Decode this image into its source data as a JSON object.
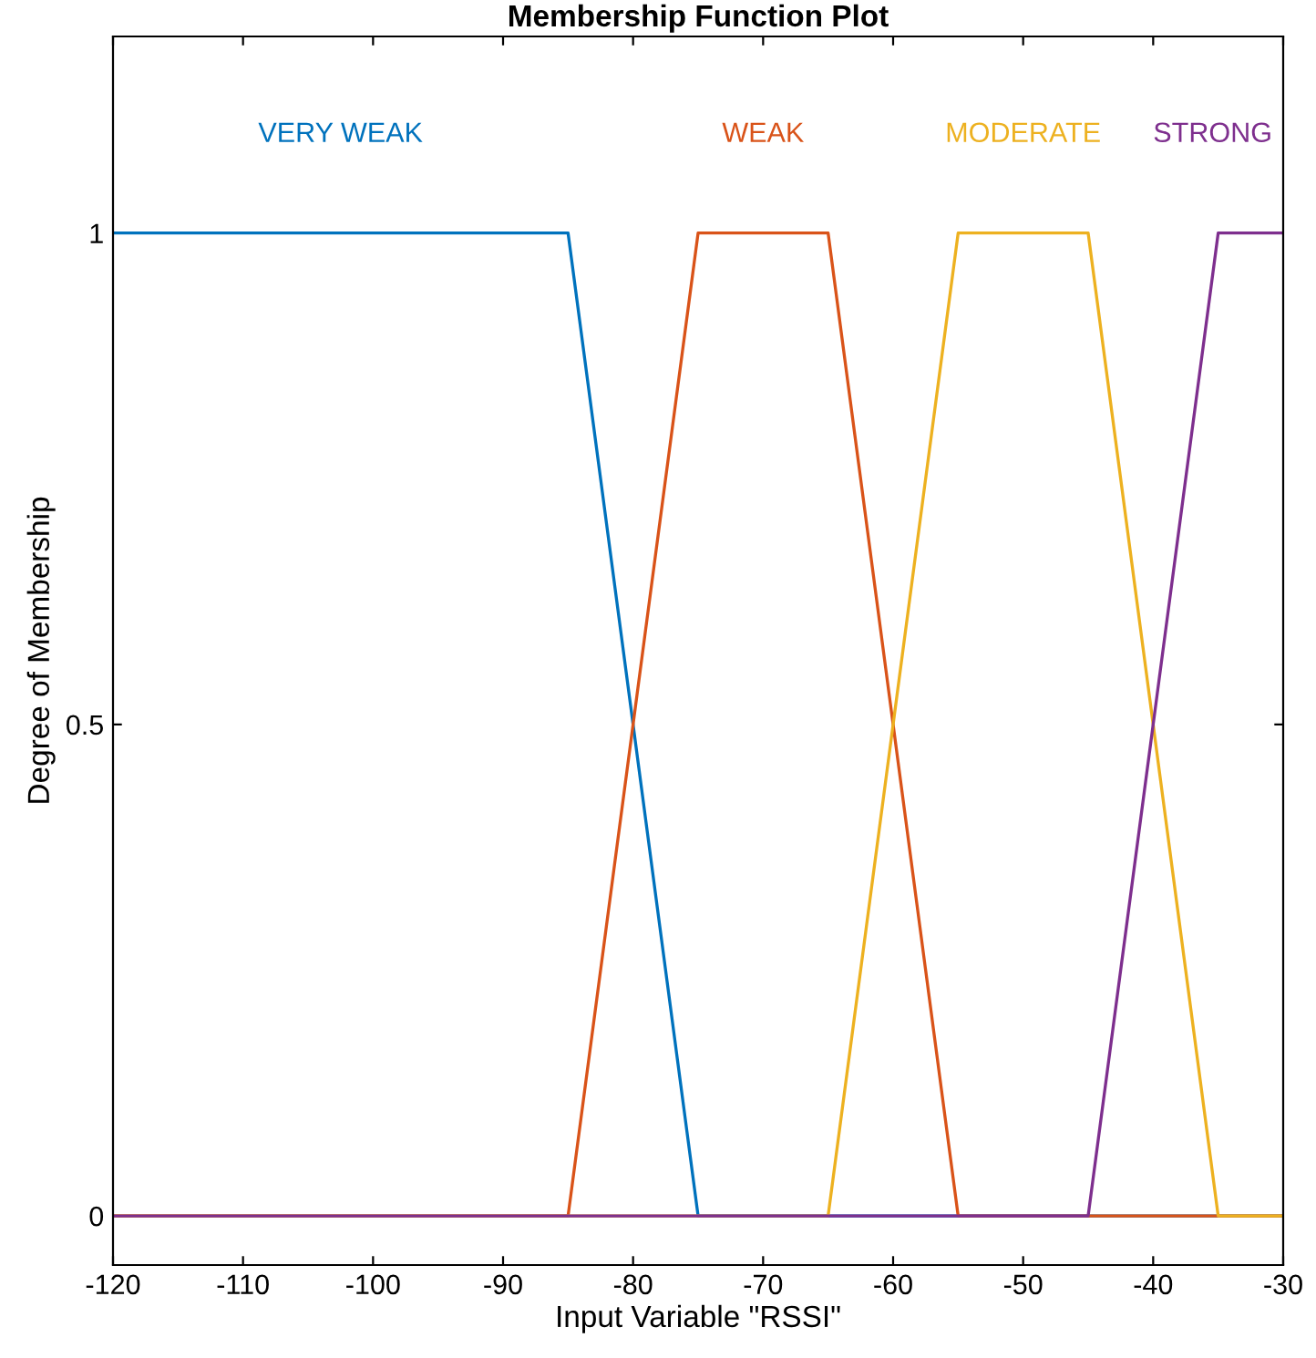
{
  "chart_data": {
    "type": "line",
    "title": "Membership Function Plot",
    "xlabel": "Input Variable \"RSSI\"",
    "ylabel": "Degree of Membership",
    "xlim": [
      -120,
      -30
    ],
    "ylim": [
      -0.05,
      1.2
    ],
    "xticks": [
      -120,
      -110,
      -100,
      -90,
      -80,
      -70,
      -60,
      -50,
      -40,
      -30
    ],
    "yticks": [
      0,
      0.5,
      1
    ],
    "grid": false,
    "legend": false,
    "series": [
      {
        "name": "VERY WEAK",
        "color": "#0072bd",
        "x": [
          -120,
          -85,
          -75,
          -30
        ],
        "values": [
          1,
          1,
          0,
          0
        ]
      },
      {
        "name": "WEAK",
        "color": "#d95319",
        "x": [
          -120,
          -85,
          -75,
          -65,
          -55,
          -30
        ],
        "values": [
          0,
          0,
          1,
          1,
          0,
          0
        ]
      },
      {
        "name": "MODERATE",
        "color": "#edb120",
        "x": [
          -120,
          -65,
          -55,
          -45,
          -35,
          -30
        ],
        "values": [
          0,
          0,
          1,
          1,
          0,
          0
        ]
      },
      {
        "name": "STRONG",
        "color": "#7e2f8e",
        "x": [
          -120,
          -45,
          -35,
          -30
        ],
        "values": [
          0,
          0,
          1,
          1
        ]
      }
    ]
  }
}
